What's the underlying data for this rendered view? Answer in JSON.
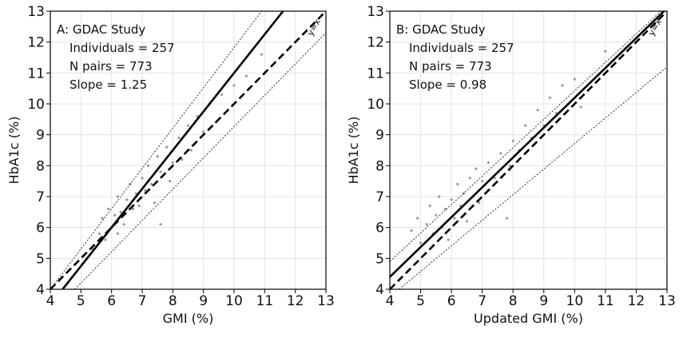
{
  "chart_data": [
    {
      "type": "scatter",
      "x_label": "GMI (%)",
      "y_label": "HbA1c (%)",
      "annotations": [
        "A: GDAC Study",
        "Individuals = 257",
        "N pairs = 773",
        "Slope = 1.25"
      ],
      "xlim": [
        4,
        13
      ],
      "ylim": [
        4,
        13
      ],
      "xticks": [
        4,
        5,
        6,
        7,
        8,
        9,
        10,
        11,
        12,
        13
      ],
      "yticks": [
        4,
        5,
        6,
        7,
        8,
        9,
        10,
        11,
        12,
        13
      ],
      "grid": true,
      "points": {
        "color": "#9a9a9a",
        "x": [
          5.4,
          5.6,
          5.7,
          5.8,
          5.9,
          6.0,
          6.1,
          6.2,
          6.2,
          6.3,
          6.4,
          6.5,
          6.6,
          6.7,
          6.8,
          6.9,
          7.0,
          7.1,
          7.2,
          7.3,
          7.4,
          7.5,
          7.6,
          7.8,
          7.9,
          8.0,
          8.2,
          8.3,
          8.5,
          8.6,
          8.8,
          9.0,
          9.2,
          9.4,
          9.6,
          9.8,
          10.0,
          10.4,
          10.9,
          7.6
        ],
        "y": [
          5.3,
          5.8,
          6.3,
          5.6,
          6.6,
          6.0,
          6.4,
          5.8,
          7.0,
          6.5,
          6.1,
          6.9,
          7.4,
          6.6,
          7.1,
          6.7,
          7.6,
          7.2,
          8.0,
          7.4,
          6.8,
          8.3,
          7.8,
          8.6,
          7.5,
          8.1,
          8.9,
          8.2,
          9.3,
          8.5,
          9.6,
          9.1,
          10.0,
          9.4,
          10.3,
          9.8,
          10.6,
          10.9,
          11.6,
          6.1
        ]
      },
      "lines": [
        {
          "style": "solid",
          "color": "#000",
          "x": [
            4.4,
            11.6
          ],
          "y": [
            4,
            13
          ]
        },
        {
          "style": "dashed",
          "color": "#000",
          "label": "y=x",
          "x": [
            4,
            13
          ],
          "y": [
            4,
            13
          ]
        },
        {
          "style": "dotted",
          "color": "#333",
          "x": [
            4,
            10.9
          ],
          "y": [
            4,
            13
          ]
        },
        {
          "style": "dotted",
          "color": "#333",
          "x": [
            4.8,
            13
          ],
          "y": [
            4,
            12.3
          ]
        }
      ]
    },
    {
      "type": "scatter",
      "x_label": "Updated GMI (%)",
      "y_label": "HbA1c (%)",
      "annotations": [
        "B: GDAC Study",
        "Individuals = 257",
        "N pairs = 773",
        "Slope = 0.98"
      ],
      "xlim": [
        4,
        13
      ],
      "ylim": [
        4,
        13
      ],
      "xticks": [
        4,
        5,
        6,
        7,
        8,
        9,
        10,
        11,
        12,
        13
      ],
      "yticks": [
        4,
        5,
        6,
        7,
        8,
        9,
        10,
        11,
        12,
        13
      ],
      "grid": true,
      "points": {
        "color": "#9a9a9a",
        "x": [
          4.7,
          4.9,
          5.0,
          5.2,
          5.3,
          5.4,
          5.5,
          5.6,
          5.7,
          5.8,
          5.9,
          6.0,
          6.1,
          6.2,
          6.3,
          6.4,
          6.5,
          6.6,
          6.7,
          6.8,
          6.9,
          7.0,
          7.2,
          7.4,
          7.6,
          7.8,
          7.9,
          8.0,
          8.2,
          8.4,
          8.6,
          8.8,
          9.0,
          9.2,
          9.4,
          9.6,
          9.8,
          10.0,
          10.2,
          11.0
        ],
        "y": [
          5.9,
          6.3,
          5.5,
          6.1,
          6.7,
          5.8,
          6.4,
          7.0,
          6.0,
          6.6,
          5.6,
          6.9,
          6.3,
          7.4,
          6.7,
          7.1,
          6.2,
          7.6,
          7.0,
          7.9,
          6.8,
          7.5,
          8.1,
          7.6,
          8.4,
          6.3,
          8.0,
          8.8,
          8.5,
          9.3,
          8.9,
          9.8,
          9.3,
          10.2,
          9.7,
          10.6,
          10.0,
          10.8,
          9.9,
          11.7
        ]
      },
      "lines": [
        {
          "style": "solid",
          "color": "#000",
          "x": [
            4,
            12.9
          ],
          "y": [
            4.4,
            13
          ]
        },
        {
          "style": "dashed",
          "color": "#000",
          "label": "y=x",
          "x": [
            4,
            13
          ],
          "y": [
            4,
            13
          ]
        },
        {
          "style": "dotted",
          "color": "#333",
          "x": [
            4,
            12.8
          ],
          "y": [
            4.9,
            13
          ]
        },
        {
          "style": "dotted",
          "color": "#333",
          "x": [
            4.3,
            13
          ],
          "y": [
            4,
            11.2
          ]
        }
      ]
    }
  ]
}
